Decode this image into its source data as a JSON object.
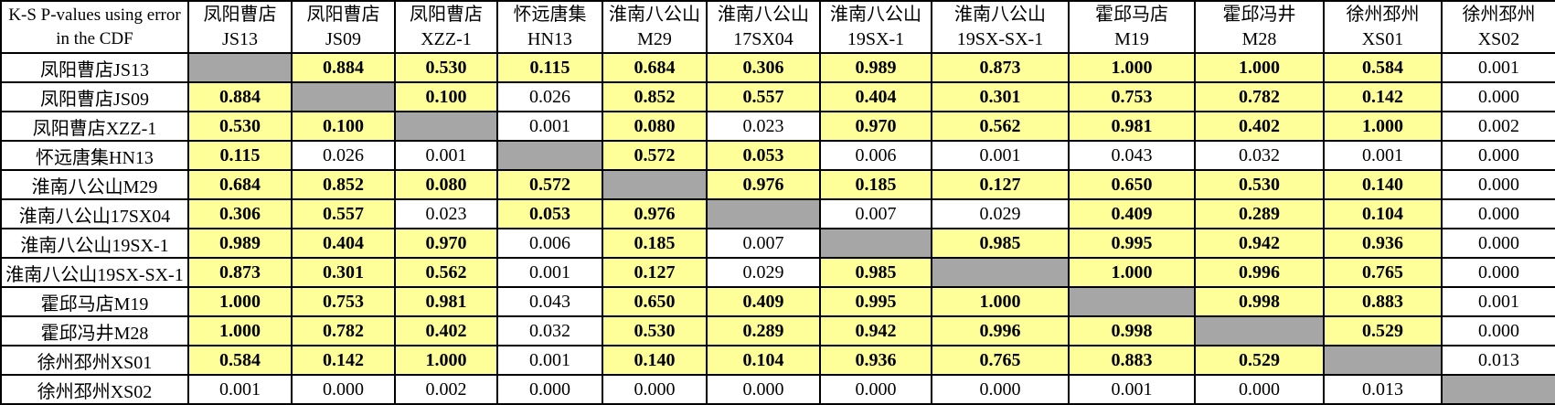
{
  "chart_data": {
    "type": "table",
    "title": "K-S P-values using error in the CDF",
    "title_lines": [
      "K-S P-values using error",
      "in the CDF"
    ],
    "columns": [
      {
        "region": "凤阳曹店",
        "code": "JS13"
      },
      {
        "region": "凤阳曹店",
        "code": "JS09"
      },
      {
        "region": "凤阳曹店",
        "code": "XZZ-1"
      },
      {
        "region": "怀远唐集",
        "code": "HN13"
      },
      {
        "region": "淮南八公山",
        "code": "M29"
      },
      {
        "region": "淮南八公山",
        "code": "17SX04"
      },
      {
        "region": "淮南八公山",
        "code": "19SX-1"
      },
      {
        "region": "淮南八公山",
        "code": "19SX-SX-1"
      },
      {
        "region": "霍邱马店",
        "code": "M19"
      },
      {
        "region": "霍邱冯井",
        "code": "M28"
      },
      {
        "region": "徐州邳州",
        "code": "XS01"
      },
      {
        "region": "徐州邳州",
        "code": "XS02"
      }
    ],
    "rows": [
      {
        "label": "凤阳曹店JS13",
        "values": [
          null,
          "0.884",
          "0.530",
          "0.115",
          "0.684",
          "0.306",
          "0.989",
          "0.873",
          "1.000",
          "1.000",
          "0.584",
          "0.001"
        ]
      },
      {
        "label": "凤阳曹店JS09",
        "values": [
          "0.884",
          null,
          "0.100",
          "0.026",
          "0.852",
          "0.557",
          "0.404",
          "0.301",
          "0.753",
          "0.782",
          "0.142",
          "0.000"
        ]
      },
      {
        "label": "凤阳曹店XZZ-1",
        "values": [
          "0.530",
          "0.100",
          null,
          "0.001",
          "0.080",
          "0.023",
          "0.970",
          "0.562",
          "0.981",
          "0.402",
          "1.000",
          "0.002"
        ]
      },
      {
        "label": "怀远唐集HN13",
        "values": [
          "0.115",
          "0.026",
          "0.001",
          null,
          "0.572",
          "0.053",
          "0.006",
          "0.001",
          "0.043",
          "0.032",
          "0.001",
          "0.000"
        ]
      },
      {
        "label": "淮南八公山M29",
        "values": [
          "0.684",
          "0.852",
          "0.080",
          "0.572",
          null,
          "0.976",
          "0.185",
          "0.127",
          "0.650",
          "0.530",
          "0.140",
          "0.000"
        ]
      },
      {
        "label": "淮南八公山17SX04",
        "values": [
          "0.306",
          "0.557",
          "0.023",
          "0.053",
          "0.976",
          null,
          "0.007",
          "0.029",
          "0.409",
          "0.289",
          "0.104",
          "0.000"
        ]
      },
      {
        "label": "淮南八公山19SX-1",
        "values": [
          "0.989",
          "0.404",
          "0.970",
          "0.006",
          "0.185",
          "0.007",
          null,
          "0.985",
          "0.995",
          "0.942",
          "0.936",
          "0.000"
        ]
      },
      {
        "label": "淮南八公山19SX-SX-1",
        "values": [
          "0.873",
          "0.301",
          "0.562",
          "0.001",
          "0.127",
          "0.029",
          "0.985",
          null,
          "1.000",
          "0.996",
          "0.765",
          "0.000"
        ]
      },
      {
        "label": "霍邱马店M19",
        "values": [
          "1.000",
          "0.753",
          "0.981",
          "0.043",
          "0.650",
          "0.409",
          "0.995",
          "1.000",
          null,
          "0.998",
          "0.883",
          "0.001"
        ]
      },
      {
        "label": "霍邱冯井M28",
        "values": [
          "1.000",
          "0.782",
          "0.402",
          "0.032",
          "0.530",
          "0.289",
          "0.942",
          "0.996",
          "0.998",
          null,
          "0.529",
          "0.000"
        ]
      },
      {
        "label": "徐州邳州XS01",
        "values": [
          "0.584",
          "0.142",
          "1.000",
          "0.001",
          "0.140",
          "0.104",
          "0.936",
          "0.765",
          "0.883",
          "0.529",
          null,
          "0.013"
        ]
      },
      {
        "label": "徐州邳州XS02",
        "values": [
          "0.001",
          "0.000",
          "0.002",
          "0.000",
          "0.000",
          "0.000",
          "0.000",
          "0.000",
          "0.001",
          "0.000",
          "0.013",
          null
        ]
      }
    ],
    "significance_threshold": 0.05,
    "colors": {
      "significant_fill": "#FFFF99",
      "diagonal_fill": "#A6A6A6",
      "border": "#000000",
      "text": "#000000",
      "background": "#FFFFFF"
    }
  }
}
